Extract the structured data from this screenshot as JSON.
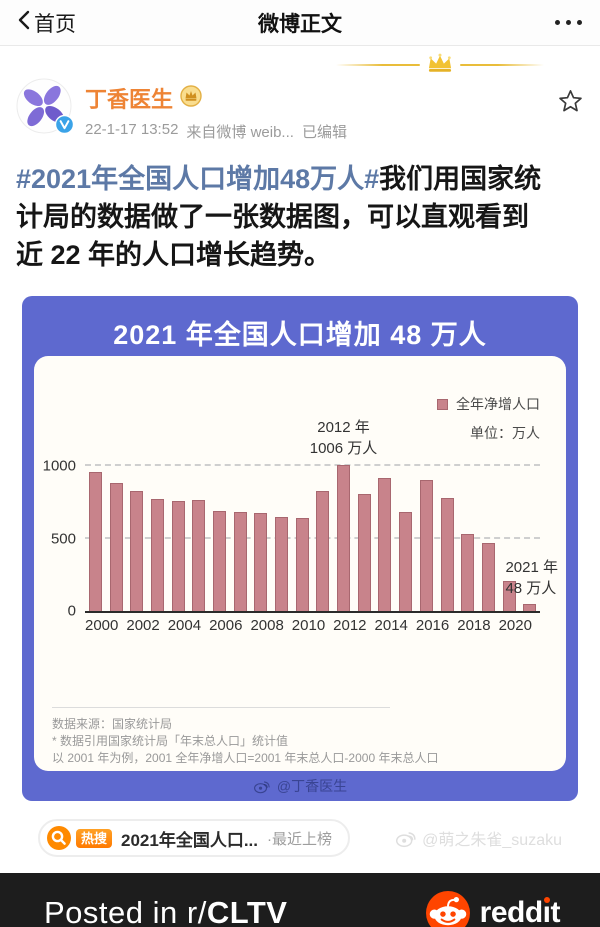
{
  "navbar": {
    "back": "首页",
    "title": "微博正文"
  },
  "post": {
    "author": "丁香医生",
    "meta": {
      "time": "22-1-17 13:52",
      "source": "来自微博 weib...",
      "edited": "已编辑"
    },
    "body": {
      "hashtag": "#2021年全国人口增加48万人#",
      "text": "我们用国家统计局的数据做了一张数据图，可以直观看到近 22 年的人口增长趋势。"
    }
  },
  "chart_data": {
    "type": "bar",
    "title": "2021 年全国人口增加 48 万人",
    "legend": "全年净增人口",
    "unit": "单位：万人",
    "categories": [
      2000,
      2001,
      2002,
      2003,
      2004,
      2005,
      2006,
      2007,
      2008,
      2009,
      2010,
      2011,
      2012,
      2013,
      2014,
      2015,
      2016,
      2017,
      2018,
      2019,
      2020,
      2021
    ],
    "values": [
      957,
      884,
      826,
      774,
      761,
      768,
      692,
      681,
      673,
      648,
      641,
      825,
      1006,
      804,
      920,
      680,
      906,
      779,
      530,
      467,
      204,
      48
    ],
    "x_tick_labels": [
      "2000",
      "2002",
      "2004",
      "2006",
      "2008",
      "2010",
      "2012",
      "2014",
      "2016",
      "2018",
      "2020"
    ],
    "y_ticks": [
      "0",
      "500",
      "1000"
    ],
    "ylim": [
      0,
      1100
    ],
    "grid": "dashed horizontal lines at 500 and 1000",
    "legend_position": "top-right",
    "annotations": [
      {
        "year": 2012,
        "line1": "2012 年",
        "line2": "1006 万人"
      },
      {
        "year": 2021,
        "line1": "2021 年",
        "line2": "48 万人"
      }
    ],
    "source_lines": [
      "数据来源：国家统计局",
      "* 数据引用国家统计局「年末总人口」统计值",
      "以 2001 年为例，2001 全年净增人口=2001 年末总人口-2000 年末总人口"
    ],
    "watermark": "@丁香医生",
    "colors": {
      "background": "#5e69cf",
      "bar": "#c8838b",
      "title_text": "#ffffff"
    }
  },
  "hot_search": {
    "badge": "热搜",
    "query": "2021年全国人口...",
    "status": "·最近上榜"
  },
  "page_watermark": "@萌之朱雀_suzaku",
  "banner": {
    "prefix": "Posted in r/",
    "subreddit": "CLTV",
    "brand": "reddit"
  }
}
